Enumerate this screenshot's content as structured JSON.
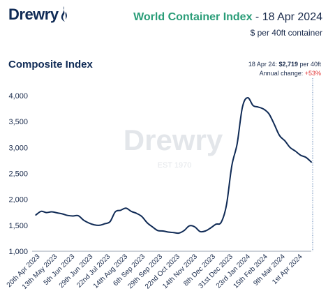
{
  "brand": {
    "logo_text": "Drewry",
    "watermark_text": "Drewry",
    "watermark_est": "EST 1970"
  },
  "header": {
    "title_main": "World Container Index",
    "title_date": " - 18 Apr 2024",
    "subtitle": "$ per 40ft container"
  },
  "section": {
    "title": "Composite Index"
  },
  "latest": {
    "date_label": "18 Apr 24: ",
    "value": "$2,719",
    "unit": " per 40ft",
    "change_label": "Annual change: ",
    "change_value": "+53%"
  },
  "colors": {
    "line": "#0f2a55",
    "accent": "#2a9d78",
    "negative": "#e03030",
    "watermark": "#d6d9de"
  },
  "chart_data": {
    "type": "line",
    "title": "Composite Index",
    "ylim": [
      1000,
      4000
    ],
    "yticks": [
      "1,000",
      "1,500",
      "2,000",
      "2,500",
      "3,000",
      "3,500",
      "4,000"
    ],
    "ytick_values": [
      1000,
      1500,
      2000,
      2500,
      3000,
      3500,
      4000
    ],
    "xticks": [
      "20th Apr 2023",
      "13th May 2023",
      "5th Jun 2023",
      "29th Jun 2023",
      "22nd Jul 2023",
      "14th Aug 2023",
      "6th Sep 2023",
      "29th Sep 2023",
      "22nd Oct 2023",
      "14th Nov 2023",
      "8th Dec 2023",
      "31st Dec 2023",
      "23rd Jan 2024",
      "15th Feb 2024",
      "9th Mar 2024",
      "1st Apr 2024"
    ],
    "xtick_dates": [
      "2023-04-20",
      "2023-05-13",
      "2023-06-05",
      "2023-06-29",
      "2023-07-22",
      "2023-08-14",
      "2023-09-06",
      "2023-09-29",
      "2023-10-22",
      "2023-11-14",
      "2023-12-08",
      "2023-12-31",
      "2024-01-23",
      "2024-02-15",
      "2024-03-09",
      "2024-04-01"
    ],
    "grid": false,
    "series": [
      {
        "values": [
          [
            "2023-04-20",
            1700
          ],
          [
            "2023-04-27",
            1770
          ],
          [
            "2023-05-04",
            1745
          ],
          [
            "2023-05-11",
            1760
          ],
          [
            "2023-05-18",
            1740
          ],
          [
            "2023-05-25",
            1720
          ],
          [
            "2023-06-01",
            1690
          ],
          [
            "2023-06-08",
            1680
          ],
          [
            "2023-06-15",
            1685
          ],
          [
            "2023-06-22",
            1600
          ],
          [
            "2023-06-29",
            1545
          ],
          [
            "2023-07-06",
            1510
          ],
          [
            "2023-07-13",
            1500
          ],
          [
            "2023-07-20",
            1530
          ],
          [
            "2023-07-27",
            1570
          ],
          [
            "2023-08-03",
            1760
          ],
          [
            "2023-08-10",
            1790
          ],
          [
            "2023-08-17",
            1830
          ],
          [
            "2023-08-24",
            1770
          ],
          [
            "2023-08-31",
            1730
          ],
          [
            "2023-09-07",
            1670
          ],
          [
            "2023-09-14",
            1550
          ],
          [
            "2023-09-21",
            1470
          ],
          [
            "2023-09-28",
            1400
          ],
          [
            "2023-10-05",
            1390
          ],
          [
            "2023-10-12",
            1370
          ],
          [
            "2023-10-19",
            1360
          ],
          [
            "2023-10-26",
            1350
          ],
          [
            "2023-11-02",
            1400
          ],
          [
            "2023-11-09",
            1490
          ],
          [
            "2023-11-16",
            1470
          ],
          [
            "2023-11-23",
            1380
          ],
          [
            "2023-11-30",
            1390
          ],
          [
            "2023-12-07",
            1450
          ],
          [
            "2023-12-14",
            1520
          ],
          [
            "2023-12-21",
            1560
          ],
          [
            "2023-12-28",
            1900
          ],
          [
            "2024-01-04",
            2650
          ],
          [
            "2024-01-11",
            3070
          ],
          [
            "2024-01-18",
            3780
          ],
          [
            "2024-01-25",
            3960
          ],
          [
            "2024-02-01",
            3810
          ],
          [
            "2024-02-08",
            3780
          ],
          [
            "2024-02-15",
            3740
          ],
          [
            "2024-02-22",
            3650
          ],
          [
            "2024-02-29",
            3450
          ],
          [
            "2024-03-07",
            3230
          ],
          [
            "2024-03-14",
            3130
          ],
          [
            "2024-03-21",
            3000
          ],
          [
            "2024-03-28",
            2930
          ],
          [
            "2024-04-04",
            2850
          ],
          [
            "2024-04-11",
            2810
          ],
          [
            "2024-04-18",
            2719
          ]
        ]
      }
    ]
  }
}
